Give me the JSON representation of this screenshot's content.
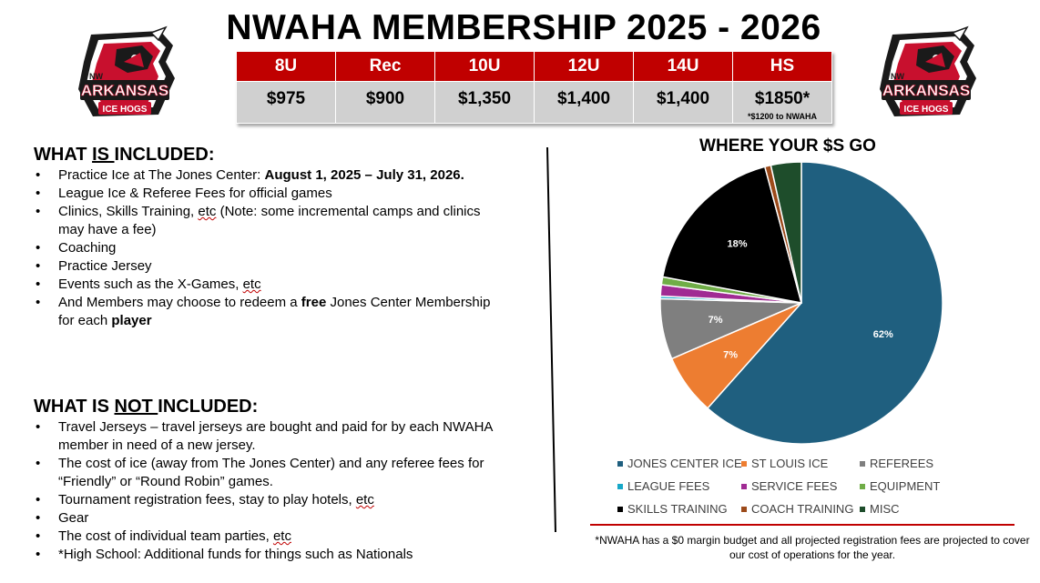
{
  "header": {
    "title": "NWAHA MEMBERSHIP 2025 - 2026"
  },
  "logo": {
    "nw": "NW",
    "arkansas": "ARKANSAS",
    "ice_hogs": "ICE HOGS"
  },
  "pricing": {
    "columns": [
      {
        "level": "8U",
        "price": "$975",
        "note": ""
      },
      {
        "level": "Rec",
        "price": "$900",
        "note": ""
      },
      {
        "level": "10U",
        "price": "$1,350",
        "note": ""
      },
      {
        "level": "12U",
        "price": "$1,400",
        "note": ""
      },
      {
        "level": "14U",
        "price": "$1,400",
        "note": ""
      },
      {
        "level": "HS",
        "price": "$1850*",
        "note": "*$1200 to NWAHA"
      }
    ]
  },
  "included": {
    "heading_pre": "WHAT ",
    "heading_underlined": "IS ",
    "heading_post": "INCLUDED:",
    "items": {
      "0": {
        "text": "Practice Ice at The Jones Center:  ",
        "bold": "August 1, 2025 – July 31, 2026."
      },
      "1": {
        "text": "League Ice & Referee Fees for official games"
      },
      "2": {
        "pre": "Clinics, Skills Training, ",
        "etc": "etc",
        "post": "  (Note: some incremental camps and clinics may have a fee)"
      },
      "3": {
        "text": "Coaching"
      },
      "4": {
        "text": "Practice Jersey"
      },
      "5": {
        "pre": "Events such as the X-Games, ",
        "etc": "etc"
      },
      "6": {
        "pre": "And Members may choose to redeem a ",
        "bold1": "free",
        "mid": " Jones Center Membership for each ",
        "bold2": "player"
      }
    }
  },
  "not_included": {
    "heading_pre": "WHAT IS ",
    "heading_underlined": "NOT ",
    "heading_post": "INCLUDED:",
    "items": {
      "0": {
        "text": "Travel Jerseys – travel jerseys are bought and paid for by each NWAHA member in need of a new jersey."
      },
      "1": {
        "text": "The cost of ice (away from The Jones Center) and any referee fees for “Friendly” or “Round Robin” games."
      },
      "2": {
        "pre": "Tournament registration fees, stay to play  hotels, ",
        "etc": "etc"
      },
      "3": {
        "text": "Gear"
      },
      "4": {
        "pre": "The cost of individual team parties, ",
        "etc": "etc"
      },
      "5": {
        "text": "*High School: Additional funds for things such as Nationals"
      }
    }
  },
  "chart_data": {
    "type": "pie",
    "title": "WHERE YOUR $S GO",
    "slices": [
      {
        "name": "JONES CENTER ICE",
        "value": 62,
        "color": "#1f5f7f",
        "label": "62%"
      },
      {
        "name": "ST LOUIS ICE",
        "value": 7,
        "color": "#ed7d31",
        "label": "7%"
      },
      {
        "name": "REFEREES",
        "value": 7,
        "color": "#7f7f7f",
        "label": "7%"
      },
      {
        "name": "LEAGUE FEES",
        "value": 0.3,
        "color": "#17a8c8",
        "label": ""
      },
      {
        "name": "SERVICE FEES",
        "value": 1.3,
        "color": "#a02b93",
        "label": ""
      },
      {
        "name": "EQUIPMENT",
        "value": 0.9,
        "color": "#70ad47",
        "label": ""
      },
      {
        "name": "SKILLS TRAINING",
        "value": 18,
        "color": "#000000",
        "label": "18%"
      },
      {
        "name": "COACH TRAINING",
        "value": 0.7,
        "color": "#9c4a1a",
        "label": ""
      },
      {
        "name": "MISC",
        "value": 3.5,
        "color": "#1e4d2b",
        "label": ""
      }
    ],
    "legend_position": "bottom"
  },
  "footnote": "*NWAHA has a $0 margin budget and all projected registration fees are projected to cover our cost of operations for the year."
}
